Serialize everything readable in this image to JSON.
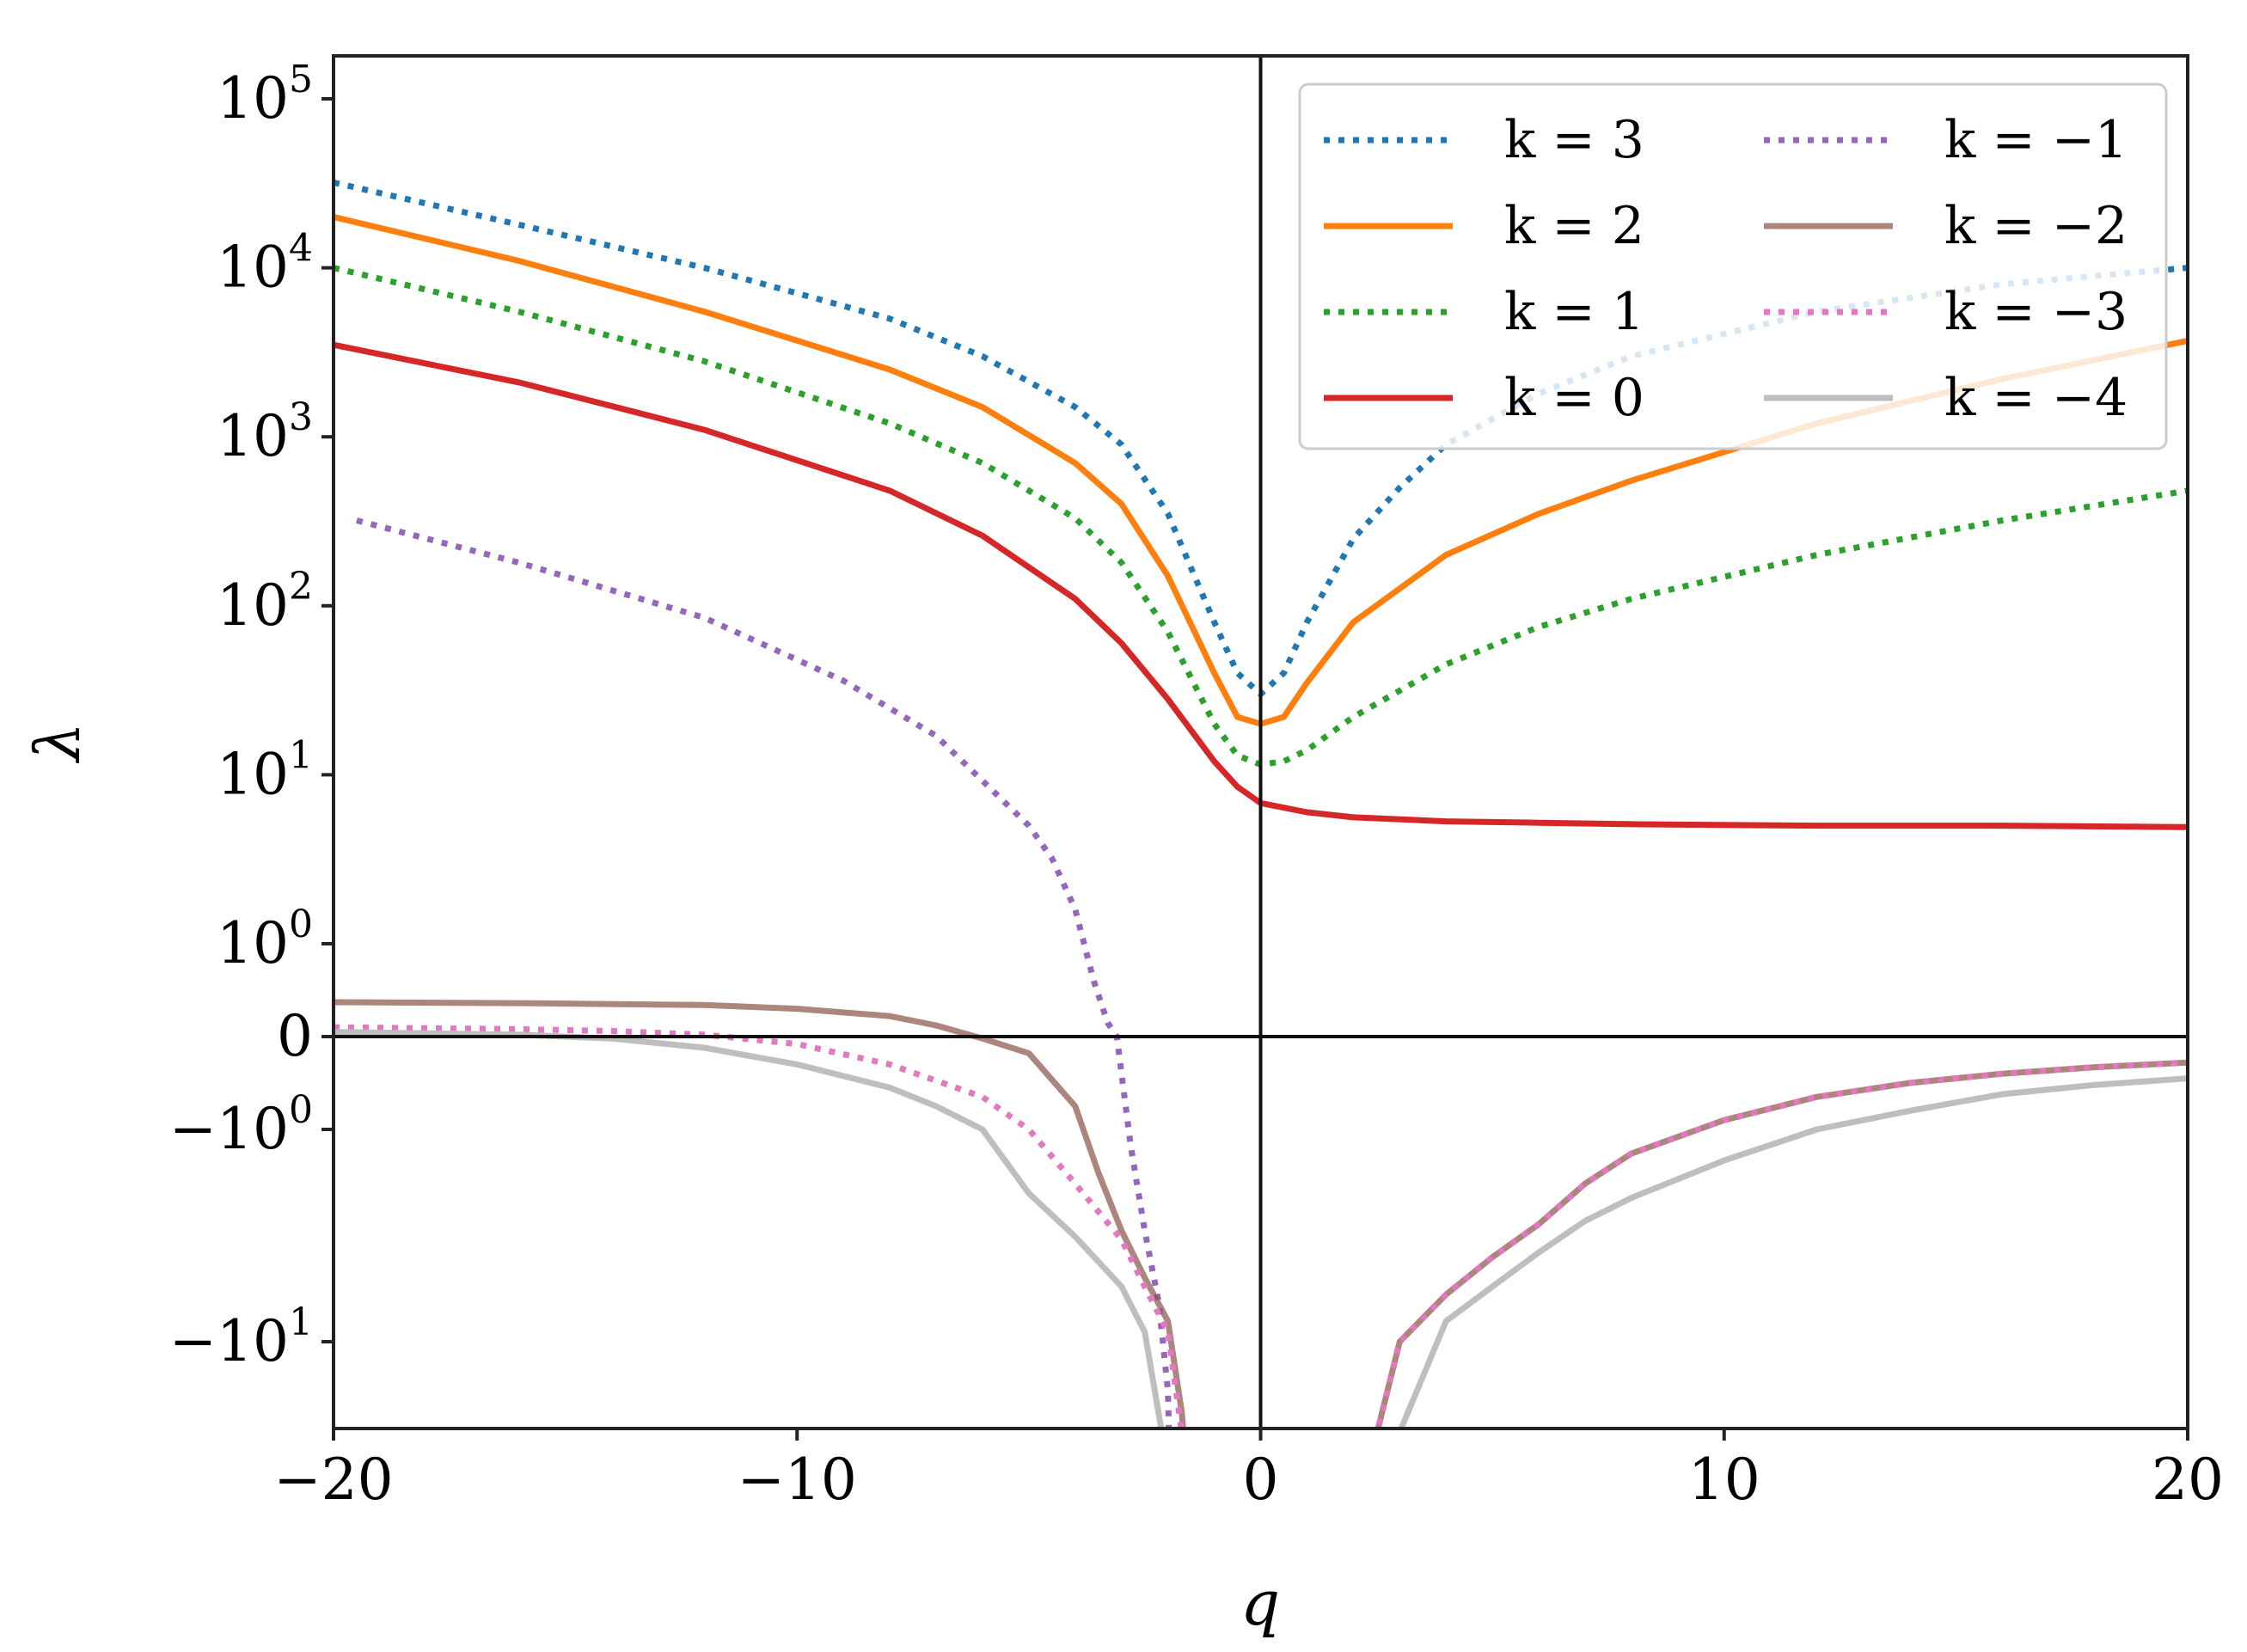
{
  "chart_data": {
    "type": "line",
    "title": "",
    "xlabel": "q",
    "ylabel": "λ",
    "xlim": [
      -20,
      20
    ],
    "ylim": [
      -25,
      100000
    ],
    "yscale": "symlog",
    "symlog_linthresh": 1,
    "grid": false,
    "reference_lines": {
      "x": 0,
      "y": 0
    },
    "legend": {
      "placement": "top-right",
      "columns": 2
    },
    "x_ticks": [
      {
        "value": -20,
        "label": "−20"
      },
      {
        "value": -10,
        "label": "−10"
      },
      {
        "value": 0,
        "label": "0"
      },
      {
        "value": 10,
        "label": "10"
      },
      {
        "value": 20,
        "label": "20"
      }
    ],
    "y_ticks": [
      {
        "value": 100000,
        "base": "10",
        "exp": "5"
      },
      {
        "value": 10000,
        "base": "10",
        "exp": "4"
      },
      {
        "value": 1000,
        "base": "10",
        "exp": "3"
      },
      {
        "value": 100,
        "base": "10",
        "exp": "2"
      },
      {
        "value": 10,
        "base": "10",
        "exp": "1"
      },
      {
        "value": 1,
        "base": "10",
        "exp": "0"
      },
      {
        "value": 0,
        "base": "0",
        "exp": ""
      },
      {
        "value": -1,
        "base": "−10",
        "exp": "0"
      },
      {
        "value": -10,
        "base": "−10",
        "exp": "1"
      }
    ],
    "series": [
      {
        "name": "k = 3",
        "color": "#1f77b4",
        "dash": "dotted",
        "x": [
          -20,
          -16,
          -12,
          -8,
          -6,
          -4,
          -3,
          -2,
          -1,
          -0.5,
          0,
          0.5,
          1,
          2,
          3,
          4,
          6,
          8,
          12,
          16,
          20
        ],
        "y": [
          32000,
          18000,
          10000,
          5000,
          3000,
          1500,
          900,
          350,
          80,
          40,
          30,
          40,
          80,
          250,
          500,
          900,
          1800,
          3000,
          5500,
          8000,
          10000
        ]
      },
      {
        "name": "k = 2",
        "color": "#ff7f0e",
        "dash": "solid",
        "x": [
          -20,
          -16,
          -12,
          -8,
          -6,
          -4,
          -3,
          -2,
          -1,
          -0.5,
          0,
          0.5,
          1,
          2,
          4,
          6,
          8,
          12,
          16,
          20
        ],
        "y": [
          20000,
          11000,
          5500,
          2500,
          1500,
          700,
          400,
          150,
          40,
          22,
          20,
          22,
          35,
          80,
          200,
          350,
          550,
          1200,
          2200,
          3700
        ]
      },
      {
        "name": "k = 1",
        "color": "#2ca02c",
        "dash": "dotted",
        "x": [
          -20,
          -16,
          -12,
          -8,
          -6,
          -4,
          -3,
          -2,
          -1,
          -0.5,
          0,
          0.5,
          1,
          2,
          4,
          6,
          8,
          12,
          16,
          20
        ],
        "y": [
          10000,
          5500,
          2800,
          1200,
          700,
          330,
          180,
          70,
          20,
          13,
          11.5,
          12,
          14,
          22,
          45,
          75,
          110,
          200,
          320,
          480
        ]
      },
      {
        "name": "k = 0",
        "color": "#d62728",
        "dash": "solid",
        "x": [
          -20,
          -16,
          -12,
          -8,
          -6,
          -4,
          -3,
          -2,
          -1,
          -0.5,
          0,
          1,
          2,
          4,
          6,
          8,
          12,
          16,
          20
        ],
        "y": [
          3500,
          2100,
          1100,
          480,
          260,
          110,
          60,
          28,
          12,
          8.5,
          6.8,
          6.0,
          5.6,
          5.3,
          5.2,
          5.1,
          5.0,
          5.0,
          4.9
        ]
      },
      {
        "name": "k = −1",
        "color": "#9467bd",
        "dash": "dotted",
        "x": [
          -19.5,
          -16,
          -12,
          -9,
          -7,
          -5,
          -4.5,
          -4,
          -3.6,
          -3.3,
          -3.1,
          -3.0,
          -2.8,
          -2.5,
          -2.2,
          -2.0,
          -1.9
        ],
        "y": [
          320,
          180,
          85,
          36,
          17,
          5,
          3.2,
          1.6,
          0.6,
          0.15,
          0,
          -0.4,
          -1.2,
          -3,
          -6.5,
          -12,
          -25
        ]
      },
      {
        "name": "k = −2",
        "color": "#8c564b",
        "dash": "solid",
        "opacity": 0.72,
        "x": [
          -20,
          -16,
          -12,
          -10,
          -8,
          -7,
          -6,
          -5,
          -4,
          -3.5,
          -3,
          -2.5,
          -2,
          -1.7,
          -1.4,
          1.8,
          2,
          3,
          4,
          5,
          6,
          7,
          8,
          10,
          12,
          14,
          16,
          18,
          20
        ],
        "y": [
          0.37,
          0.36,
          0.34,
          0.3,
          0.22,
          0.12,
          -0.02,
          -0.18,
          -0.75,
          -1.6,
          -3,
          -5,
          -8,
          -13,
          -25,
          -25,
          -20,
          -10,
          -6,
          -4,
          -2.8,
          -1.8,
          -1.3,
          -0.9,
          -0.65,
          -0.5,
          -0.4,
          -0.33,
          -0.28
        ]
      },
      {
        "name": "k = −3",
        "color": "#e377c2",
        "dash": "dotted",
        "x": [
          -20,
          -16,
          -14,
          -12,
          -10,
          -8,
          -6,
          -5,
          -4,
          -3,
          -2.5,
          -2,
          -1.7,
          -1.4,
          1.8,
          2,
          3,
          4,
          5,
          6,
          7,
          8,
          10,
          12,
          14,
          16,
          18,
          20
        ],
        "y": [
          0.1,
          0.08,
          0.06,
          0.02,
          -0.08,
          -0.3,
          -0.65,
          -1.0,
          -1.8,
          -3.3,
          -5.5,
          -9,
          -14,
          -25,
          -25,
          -20,
          -10,
          -6,
          -4,
          -2.8,
          -1.8,
          -1.3,
          -0.9,
          -0.65,
          -0.5,
          -0.4,
          -0.33,
          -0.28
        ]
      },
      {
        "name": "k = −4",
        "color": "#bbbbbb",
        "dash": "solid",
        "opacity": 0.95,
        "x": [
          -20,
          -16,
          -14,
          -12,
          -10,
          -8,
          -7,
          -6,
          -5,
          -4,
          -3,
          -2.5,
          -2,
          -1.9,
          2.3,
          3,
          4,
          5,
          6,
          7,
          8,
          10,
          12,
          14,
          16,
          18,
          20
        ],
        "y": [
          0.05,
          0.02,
          -0.02,
          -0.12,
          -0.3,
          -0.55,
          -0.75,
          -1.0,
          -2.0,
          -3.2,
          -5.5,
          -9,
          -16,
          -25,
          -25,
          -14,
          -8,
          -5.5,
          -3.8,
          -2.7,
          -2.1,
          -1.4,
          -1.0,
          -0.8,
          -0.62,
          -0.52,
          -0.45
        ]
      }
    ]
  }
}
